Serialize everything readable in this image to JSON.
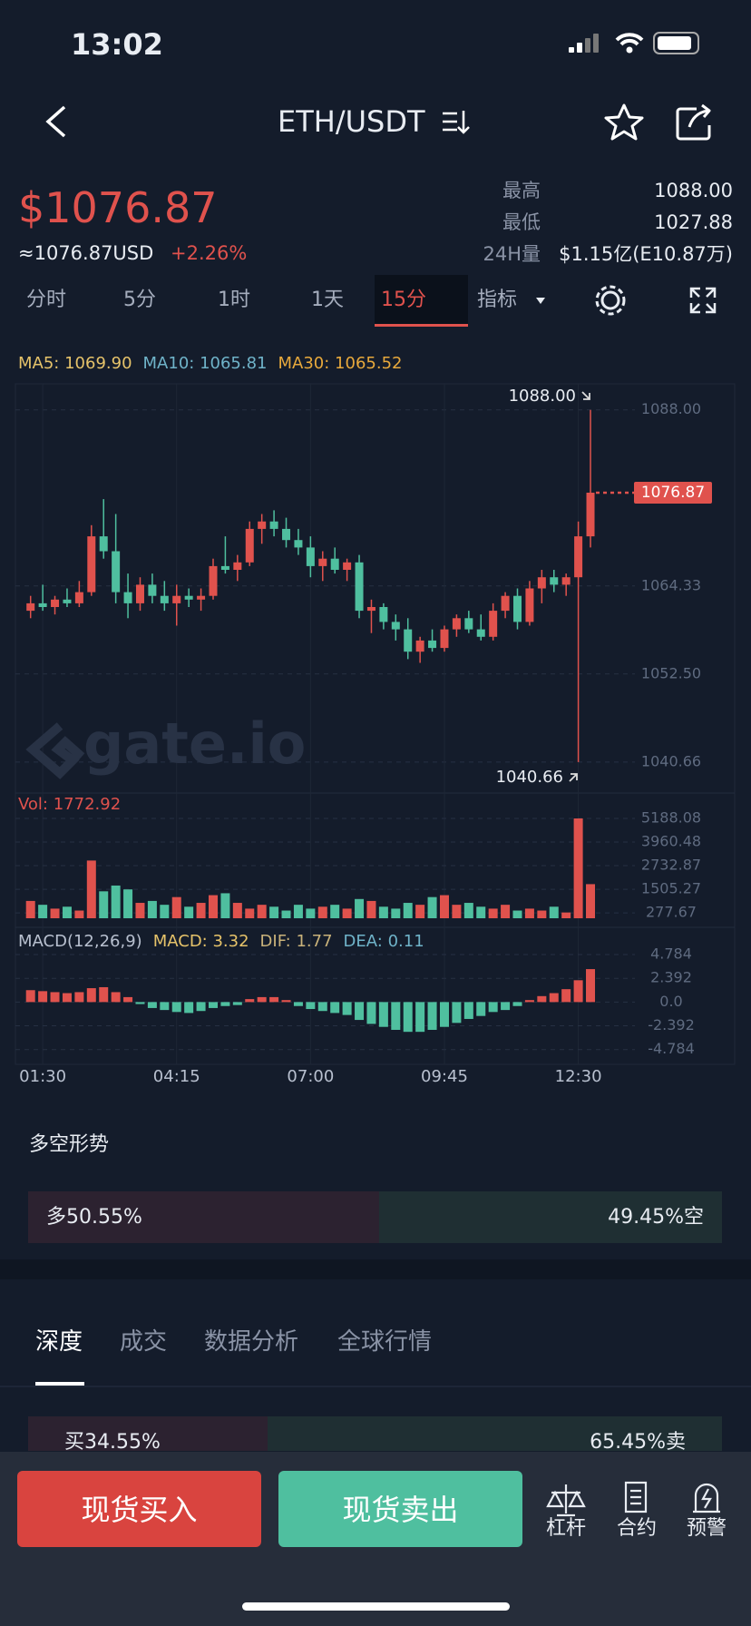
{
  "status_bar": {
    "time": "13:02"
  },
  "header": {
    "pair": "ETH/USDT"
  },
  "ticker": {
    "price": "$1076.87",
    "usd": "≈1076.87USD",
    "change": "+2.26%",
    "stats": [
      {
        "label": "最高",
        "value": "1088.00"
      },
      {
        "label": "最低",
        "value": "1027.88"
      },
      {
        "label": "24H量",
        "value": "$1.15亿(E10.87万)"
      }
    ]
  },
  "intervals": [
    "分时",
    "5分",
    "1时",
    "1天",
    "15分",
    "指标"
  ],
  "active_interval": 4,
  "chart": {
    "type": "candlestick",
    "ma_labels": [
      {
        "text": "MA5: 1069.90",
        "color": "#e6c36a"
      },
      {
        "text": "MA10: 1065.81",
        "color": "#6fb3c9"
      },
      {
        "text": "MA30: 1065.52",
        "color": "#e8a93c"
      }
    ],
    "high_label": "1088.00",
    "low_label": "1040.66",
    "current_price": {
      "value": 1076.87,
      "label": "1076.87"
    },
    "watermark": "gate.io",
    "up_color": "#e0524d",
    "down_color": "#4fbf9f",
    "ylim": [
      1036.5,
      1091.5
    ],
    "yticks": [
      {
        "value": 1088,
        "label": "1088.00"
      },
      1064.33,
      {
        "value": 1052.5,
        "label": "1052.50"
      },
      1040.66
    ],
    "grid": true,
    "categories": [
      null,
      "01:30",
      null,
      null,
      null,
      null,
      null,
      null,
      null,
      null,
      null,
      null,
      "04:15",
      null,
      null,
      null,
      null,
      null,
      null,
      null,
      null,
      null,
      null,
      "07:00",
      null,
      null,
      null,
      null,
      null,
      null,
      null,
      null,
      null,
      null,
      "09:45",
      null,
      null,
      null,
      null,
      null,
      null,
      null,
      null,
      null,
      null,
      "12:30",
      null
    ],
    "candles": [
      [
        1061.0,
        1063.0,
        1060.0,
        1062.0
      ],
      [
        1062.0,
        1064.5,
        1061.0,
        1061.5
      ],
      [
        1061.5,
        1063.0,
        1060.5,
        1062.5
      ],
      [
        1062.5,
        1064.0,
        1061.5,
        1062.0
      ],
      [
        1062.0,
        1065.0,
        1061.5,
        1063.5
      ],
      [
        1063.5,
        1072.5,
        1063.0,
        1071.0
      ],
      [
        1071.0,
        1076.0,
        1068.0,
        1069.0
      ],
      [
        1069.0,
        1074.0,
        1062.0,
        1063.5
      ],
      [
        1063.5,
        1066.0,
        1060.0,
        1062.0
      ],
      [
        1062.0,
        1065.5,
        1061.0,
        1064.5
      ],
      [
        1064.5,
        1066.0,
        1062.0,
        1063.0
      ],
      [
        1063.0,
        1065.0,
        1061.0,
        1062.0
      ],
      [
        1062.0,
        1064.5,
        1059.0,
        1063.0
      ],
      [
        1063.0,
        1064.0,
        1061.5,
        1062.5
      ],
      [
        1062.5,
        1064.0,
        1061.0,
        1063.0
      ],
      [
        1063.0,
        1068.0,
        1062.5,
        1067.0
      ],
      [
        1067.0,
        1071.0,
        1066.0,
        1066.5
      ],
      [
        1066.5,
        1068.5,
        1065.0,
        1067.5
      ],
      [
        1067.5,
        1073.0,
        1067.0,
        1072.0
      ],
      [
        1072.0,
        1074.0,
        1070.0,
        1073.0
      ],
      [
        1073.0,
        1074.5,
        1071.0,
        1072.0
      ],
      [
        1072.0,
        1073.5,
        1069.5,
        1070.5
      ],
      [
        1070.5,
        1072.0,
        1068.5,
        1069.5
      ],
      [
        1069.5,
        1071.0,
        1065.5,
        1067.0
      ],
      [
        1067.0,
        1069.0,
        1065.0,
        1068.0
      ],
      [
        1068.0,
        1069.5,
        1066.0,
        1066.5
      ],
      [
        1066.5,
        1068.0,
        1065.0,
        1067.5
      ],
      [
        1067.5,
        1068.5,
        1060.0,
        1061.0
      ],
      [
        1061.0,
        1062.5,
        1058.0,
        1061.5
      ],
      [
        1061.5,
        1062.0,
        1058.5,
        1059.5
      ],
      [
        1059.5,
        1060.5,
        1057.0,
        1058.5
      ],
      [
        1058.5,
        1060.0,
        1054.5,
        1055.5
      ],
      [
        1055.5,
        1057.5,
        1054.0,
        1057.0
      ],
      [
        1057.0,
        1058.5,
        1055.5,
        1056.0
      ],
      [
        1056.0,
        1059.0,
        1055.5,
        1058.5
      ],
      [
        1058.5,
        1060.5,
        1057.5,
        1060.0
      ],
      [
        1060.0,
        1061.0,
        1058.0,
        1058.5
      ],
      [
        1058.5,
        1060.5,
        1057.0,
        1057.5
      ],
      [
        1057.5,
        1062.0,
        1057.0,
        1061.0
      ],
      [
        1061.0,
        1063.5,
        1060.0,
        1063.0
      ],
      [
        1063.0,
        1064.0,
        1058.5,
        1059.5
      ],
      [
        1059.5,
        1065.0,
        1059.0,
        1064.0
      ],
      [
        1064.0,
        1066.5,
        1062.0,
        1065.5
      ],
      [
        1065.5,
        1066.5,
        1063.5,
        1064.5
      ],
      [
        1064.5,
        1066.0,
        1063.0,
        1065.5
      ],
      [
        1065.5,
        1073.0,
        1040.66,
        1071.0
      ],
      [
        1071.0,
        1088.0,
        1069.5,
        1076.87
      ]
    ],
    "volume": {
      "label": "Vol: 1772.92",
      "ylim": [
        0,
        6226
      ],
      "yticks": [
        5188.08,
        3960.48,
        2732.87,
        1505.27,
        277.67
      ],
      "values": [
        900,
        700,
        500,
        600,
        400,
        3000,
        1400,
        1700,
        1500,
        800,
        900,
        700,
        1100,
        600,
        800,
        1200,
        1300,
        800,
        500,
        700,
        600,
        400,
        700,
        500,
        600,
        700,
        500,
        1000,
        900,
        600,
        500,
        800,
        700,
        1100,
        1200,
        700,
        800,
        600,
        500,
        700,
        400,
        500,
        400,
        600,
        300,
        5188.08,
        1772.92
      ]
    },
    "macd": {
      "title": "MACD(12,26,9)",
      "labels": [
        {
          "text": "MACD: 3.32",
          "color": "#e6c36a"
        },
        {
          "text": "DIF: 1.77",
          "color": "#c9b27a"
        },
        {
          "text": "DEA: 0.11",
          "color": "#6fb3c9"
        }
      ],
      "ylim": [
        -6,
        6.8
      ],
      "yticks": [
        4.784,
        2.392,
        {
          "value": 0,
          "label": "0.0"
        },
        -2.392,
        -4.784
      ],
      "values": [
        1.2,
        1.1,
        1.0,
        0.9,
        1.0,
        1.4,
        1.5,
        1.0,
        0.5,
        -0.2,
        -0.6,
        -0.8,
        -1.0,
        -1.1,
        -0.9,
        -0.6,
        -0.4,
        -0.3,
        0.3,
        0.5,
        0.5,
        0.2,
        -0.4,
        -0.7,
        -0.9,
        -1.1,
        -1.3,
        -1.8,
        -2.2,
        -2.5,
        -2.8,
        -3.0,
        -3.0,
        -2.8,
        -2.5,
        -2.1,
        -1.7,
        -1.4,
        -1.0,
        -0.8,
        -0.4,
        0.2,
        0.6,
        0.9,
        1.3,
        2.2,
        3.32
      ]
    }
  },
  "sentiment": {
    "title": "多空形势",
    "long_pct": 50.55,
    "long": "多50.55%",
    "short": "49.45%空"
  },
  "tabs": [
    "深度",
    "成交",
    "数据分析",
    "全球行情"
  ],
  "depth": {
    "buy_pct": 34.55,
    "buy": "买34.55%",
    "sell": "65.45%卖"
  },
  "actions": {
    "buy": "现货买入",
    "sell": "现货卖出",
    "tools": [
      "杠杆",
      "合约",
      "预警"
    ]
  }
}
